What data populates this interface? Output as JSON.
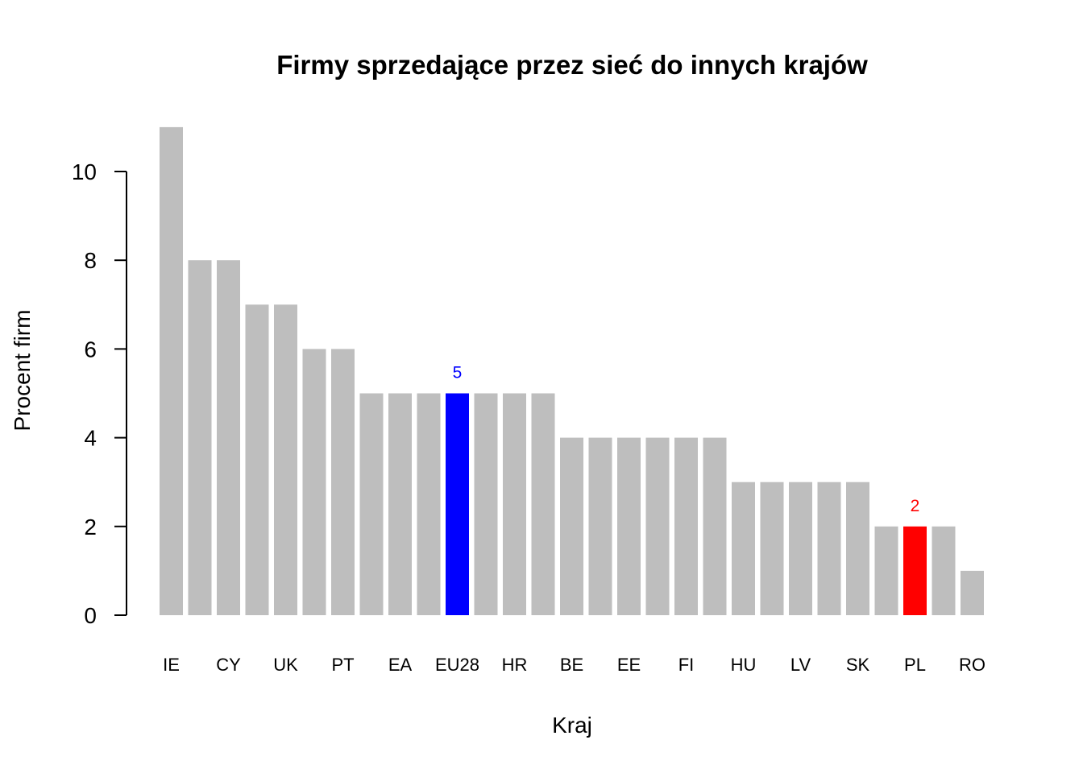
{
  "chart_data": {
    "type": "bar",
    "title": "Firmy sprzedające przez sieć do innych krajów",
    "xlabel": "Kraj",
    "ylabel": "Procent firm",
    "ylim": [
      0,
      11
    ],
    "yticks": [
      "0",
      "2",
      "4",
      "6",
      "8",
      "10"
    ],
    "categories": [
      "IE",
      "",
      "CY",
      "",
      "UK",
      "",
      "PT",
      "",
      "EA",
      "",
      "EU28",
      "",
      "HR",
      "",
      "BE",
      "",
      "EE",
      "",
      "FI",
      "",
      "HU",
      "",
      "LV",
      "",
      "SK",
      "",
      "PL",
      "",
      "RO"
    ],
    "values": [
      11,
      8,
      8,
      7,
      7,
      6,
      6,
      5,
      5,
      5,
      5,
      5,
      5,
      5,
      4,
      4,
      4,
      4,
      4,
      4,
      3,
      3,
      3,
      3,
      3,
      2,
      2,
      2,
      1
    ],
    "tick_labels": [
      {
        "index": 0,
        "label": "IE"
      },
      {
        "index": 2,
        "label": "CY"
      },
      {
        "index": 4,
        "label": "UK"
      },
      {
        "index": 6,
        "label": "PT"
      },
      {
        "index": 8,
        "label": "EA"
      },
      {
        "index": 10,
        "label": "EU28"
      },
      {
        "index": 12,
        "label": "HR"
      },
      {
        "index": 14,
        "label": "BE"
      },
      {
        "index": 16,
        "label": "EE"
      },
      {
        "index": 18,
        "label": "FI"
      },
      {
        "index": 20,
        "label": "HU"
      },
      {
        "index": 22,
        "label": "LV"
      },
      {
        "index": 24,
        "label": "SK"
      },
      {
        "index": 26,
        "label": "PL"
      },
      {
        "index": 28,
        "label": "RO"
      }
    ],
    "highlights": [
      {
        "index": 10,
        "color": "#0000ff",
        "label": "5"
      },
      {
        "index": 26,
        "color": "#ff0000",
        "label": "2"
      }
    ],
    "colors": {
      "default_bar": "#bebebe",
      "axis": "#000000"
    },
    "grid": false,
    "legend": "none"
  }
}
